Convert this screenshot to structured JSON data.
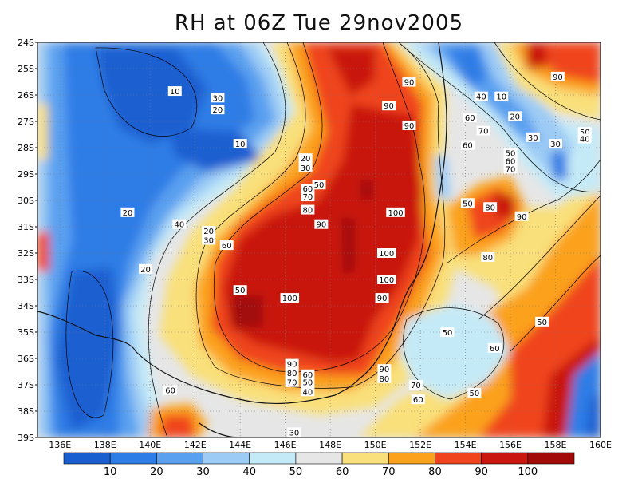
{
  "title": "RH at 06Z Tue 29nov2005",
  "map": {
    "lat_labels": [
      "24S",
      "25S",
      "26S",
      "27S",
      "28S",
      "29S",
      "30S",
      "31S",
      "32S",
      "33S",
      "34S",
      "35S",
      "36S",
      "37S",
      "38S",
      "39S"
    ],
    "lon_labels": [
      "136E",
      "138E",
      "140E",
      "142E",
      "144E",
      "146E",
      "148E",
      "150E",
      "152E",
      "154E",
      "156E",
      "158E",
      "160E"
    ],
    "contour_labels": [
      {
        "text": "10",
        "lon": 141.1,
        "lat": -25.85
      },
      {
        "text": "30",
        "lon": 143.0,
        "lat": -26.1
      },
      {
        "text": "20",
        "lon": 143.0,
        "lat": -26.55
      },
      {
        "text": "10",
        "lon": 144.0,
        "lat": -27.85
      },
      {
        "text": "20",
        "lon": 146.9,
        "lat": -28.4
      },
      {
        "text": "30",
        "lon": 146.9,
        "lat": -28.75
      },
      {
        "text": "50",
        "lon": 147.5,
        "lat": -29.4
      },
      {
        "text": "60",
        "lon": 147.0,
        "lat": -29.55
      },
      {
        "text": "70",
        "lon": 147.0,
        "lat": -29.85
      },
      {
        "text": "80",
        "lon": 147.0,
        "lat": -30.35
      },
      {
        "text": "90",
        "lon": 147.6,
        "lat": -30.9
      },
      {
        "text": "20",
        "lon": 139.0,
        "lat": -30.45
      },
      {
        "text": "40",
        "lon": 141.3,
        "lat": -30.9
      },
      {
        "text": "20",
        "lon": 142.6,
        "lat": -31.15
      },
      {
        "text": "30",
        "lon": 142.6,
        "lat": -31.5
      },
      {
        "text": "60",
        "lon": 143.4,
        "lat": -31.7
      },
      {
        "text": "20",
        "lon": 139.8,
        "lat": -32.6
      },
      {
        "text": "50",
        "lon": 144.0,
        "lat": -33.4
      },
      {
        "text": "100",
        "lon": 146.2,
        "lat": -33.7
      },
      {
        "text": "100",
        "lon": 150.5,
        "lat": -32.0
      },
      {
        "text": "100",
        "lon": 150.5,
        "lat": -33.0
      },
      {
        "text": "90",
        "lon": 150.3,
        "lat": -33.7
      },
      {
        "text": "100",
        "lon": 150.9,
        "lat": -30.45
      },
      {
        "text": "90",
        "lon": 151.5,
        "lat": -25.5
      },
      {
        "text": "90",
        "lon": 150.6,
        "lat": -26.4
      },
      {
        "text": "90",
        "lon": 151.5,
        "lat": -27.15
      },
      {
        "text": "90",
        "lon": 146.3,
        "lat": -36.2
      },
      {
        "text": "80",
        "lon": 146.3,
        "lat": -36.55
      },
      {
        "text": "70",
        "lon": 146.3,
        "lat": -36.9
      },
      {
        "text": "60",
        "lon": 147.0,
        "lat": -36.6
      },
      {
        "text": "50",
        "lon": 147.0,
        "lat": -36.9
      },
      {
        "text": "40",
        "lon": 147.0,
        "lat": -37.25
      },
      {
        "text": "30",
        "lon": 146.4,
        "lat": -38.8
      },
      {
        "text": "60",
        "lon": 140.9,
        "lat": -37.2
      },
      {
        "text": "90",
        "lon": 150.4,
        "lat": -36.4
      },
      {
        "text": "80",
        "lon": 150.4,
        "lat": -36.75
      },
      {
        "text": "70",
        "lon": 151.8,
        "lat": -37.0
      },
      {
        "text": "60",
        "lon": 151.9,
        "lat": -37.55
      },
      {
        "text": "50",
        "lon": 153.2,
        "lat": -35.0
      },
      {
        "text": "60",
        "lon": 155.3,
        "lat": -35.6
      },
      {
        "text": "50",
        "lon": 154.4,
        "lat": -37.3
      },
      {
        "text": "50",
        "lon": 157.4,
        "lat": -34.6
      },
      {
        "text": "40",
        "lon": 154.7,
        "lat": -26.05
      },
      {
        "text": "10",
        "lon": 155.6,
        "lat": -26.05
      },
      {
        "text": "20",
        "lon": 156.2,
        "lat": -26.8
      },
      {
        "text": "60",
        "lon": 154.2,
        "lat": -26.85
      },
      {
        "text": "70",
        "lon": 154.8,
        "lat": -27.35
      },
      {
        "text": "60",
        "lon": 154.1,
        "lat": -27.9
      },
      {
        "text": "30",
        "lon": 157.0,
        "lat": -27.6
      },
      {
        "text": "50",
        "lon": 156.0,
        "lat": -28.2
      },
      {
        "text": "60",
        "lon": 156.0,
        "lat": -28.5
      },
      {
        "text": "70",
        "lon": 156.0,
        "lat": -28.8
      },
      {
        "text": "50",
        "lon": 159.3,
        "lat": -27.4
      },
      {
        "text": "40",
        "lon": 159.3,
        "lat": -27.65
      },
      {
        "text": "30",
        "lon": 158.0,
        "lat": -27.85
      },
      {
        "text": "90",
        "lon": 158.1,
        "lat": -25.3
      },
      {
        "text": "50",
        "lon": 154.1,
        "lat": -30.1
      },
      {
        "text": "80",
        "lon": 155.1,
        "lat": -30.25
      },
      {
        "text": "90",
        "lon": 156.5,
        "lat": -30.6
      },
      {
        "text": "80",
        "lon": 155.0,
        "lat": -32.15
      }
    ]
  },
  "colorbar": {
    "labels": [
      "10",
      "20",
      "30",
      "40",
      "50",
      "60",
      "70",
      "80",
      "90",
      "100"
    ],
    "colors": [
      "#1a5fd0",
      "#2d7de6",
      "#5aa0f0",
      "#9ccbf5",
      "#c5eaf7",
      "#e6e6e6",
      "#f9e07a",
      "#fba11c",
      "#f0441c",
      "#c9160e",
      "#a20a0a"
    ]
  }
}
